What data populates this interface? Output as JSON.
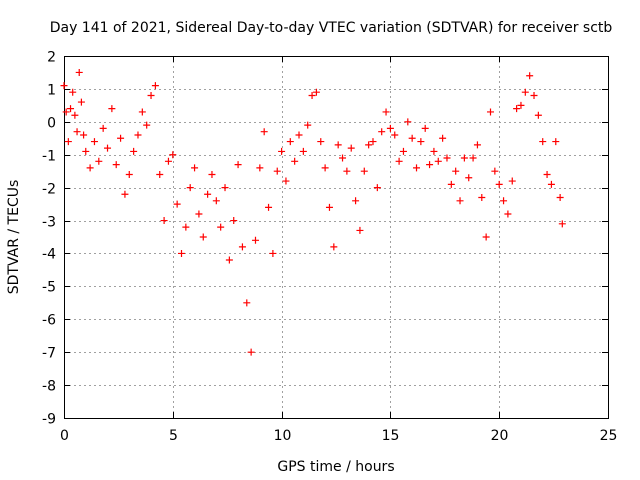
{
  "chart_data": {
    "type": "scatter",
    "title": "Day 141 of 2021, Sidereal Day-to-day VTEC variation (SDTVAR) for receiver sctb",
    "xlabel": "GPS time / hours",
    "ylabel": "SDTVAR / TECUs",
    "xlim": [
      0,
      25
    ],
    "ylim": [
      -9,
      2
    ],
    "x_ticks": [
      0,
      5,
      10,
      15,
      20,
      25
    ],
    "y_ticks": [
      -9,
      -8,
      -7,
      -6,
      -5,
      -4,
      -3,
      -2,
      -1,
      0,
      1,
      2
    ],
    "x_tick_labels": [
      "0",
      "5",
      "10",
      "15",
      "20",
      "25"
    ],
    "y_tick_labels": [
      "-9",
      "-8",
      "-7",
      "-6",
      "-5",
      "-4",
      "-3",
      "-2",
      "-1",
      "0",
      "1",
      "2"
    ],
    "grid": true,
    "marker": "+",
    "color": "#ff0000",
    "series": [
      {
        "name": "SDTVAR",
        "x": [
          0.0,
          0.1,
          0.2,
          0.3,
          0.4,
          0.5,
          0.6,
          0.7,
          0.8,
          0.9,
          1.0,
          1.2,
          1.4,
          1.6,
          1.8,
          2.0,
          2.2,
          2.4,
          2.6,
          2.8,
          3.0,
          3.2,
          3.4,
          3.6,
          3.8,
          4.0,
          4.2,
          4.4,
          4.6,
          4.8,
          5.0,
          5.2,
          5.4,
          5.6,
          5.8,
          6.0,
          6.2,
          6.4,
          6.6,
          6.8,
          7.0,
          7.2,
          7.4,
          7.6,
          7.8,
          8.0,
          8.2,
          8.4,
          8.6,
          8.8,
          9.0,
          9.2,
          9.4,
          9.6,
          9.8,
          10.0,
          10.2,
          10.4,
          10.6,
          10.8,
          11.0,
          11.2,
          11.4,
          11.6,
          11.8,
          12.0,
          12.2,
          12.4,
          12.6,
          12.8,
          13.0,
          13.2,
          13.4,
          13.6,
          13.8,
          14.0,
          14.2,
          14.4,
          14.6,
          14.8,
          15.0,
          15.2,
          15.4,
          15.6,
          15.8,
          16.0,
          16.2,
          16.4,
          16.6,
          16.8,
          17.0,
          17.2,
          17.4,
          17.6,
          17.8,
          18.0,
          18.2,
          18.4,
          18.6,
          18.8,
          19.0,
          19.2,
          19.4,
          19.6,
          19.8,
          20.0,
          20.2,
          20.4,
          20.6,
          20.8,
          21.0,
          21.2,
          21.4,
          21.6,
          21.8,
          22.0,
          22.2,
          22.4,
          22.6,
          22.8,
          22.9
        ],
        "y": [
          1.1,
          0.3,
          -0.6,
          0.4,
          0.9,
          0.2,
          -0.3,
          1.5,
          0.6,
          -0.4,
          -0.9,
          -1.4,
          -0.6,
          -1.2,
          -0.2,
          -0.8,
          0.4,
          -1.3,
          -0.5,
          -2.2,
          -1.6,
          -0.9,
          -0.4,
          0.3,
          -0.1,
          0.8,
          1.1,
          -1.6,
          -3.0,
          -1.2,
          -1.0,
          -2.5,
          -4.0,
          -3.2,
          -2.0,
          -1.4,
          -2.8,
          -3.5,
          -2.2,
          -1.6,
          -2.4,
          -3.2,
          -2.0,
          -4.2,
          -3.0,
          -1.3,
          -3.8,
          -5.5,
          -7.0,
          -3.6,
          -1.4,
          -0.3,
          -2.6,
          -4.0,
          -1.5,
          -0.9,
          -1.8,
          -0.6,
          -1.2,
          -0.4,
          -0.9,
          -0.1,
          0.8,
          0.9,
          -0.6,
          -1.4,
          -2.6,
          -3.8,
          -0.7,
          -1.1,
          -1.5,
          -0.8,
          -2.4,
          -3.3,
          -1.5,
          -0.7,
          -0.6,
          -2.0,
          -0.3,
          0.3,
          -0.2,
          -0.4,
          -1.2,
          -0.9,
          0.0,
          -0.5,
          -1.4,
          -0.6,
          -0.2,
          -1.3,
          -0.9,
          -1.2,
          -0.5,
          -1.1,
          -1.9,
          -1.5,
          -2.4,
          -1.1,
          -1.7,
          -1.1,
          -0.7,
          -2.3,
          -3.5,
          0.3,
          -1.5,
          -1.9,
          -2.4,
          -2.8,
          -1.8,
          0.4,
          0.5,
          0.9,
          1.4,
          0.8,
          0.2,
          -0.6,
          -1.6,
          -1.9,
          -0.6,
          -2.3,
          -3.1
        ]
      }
    ]
  }
}
